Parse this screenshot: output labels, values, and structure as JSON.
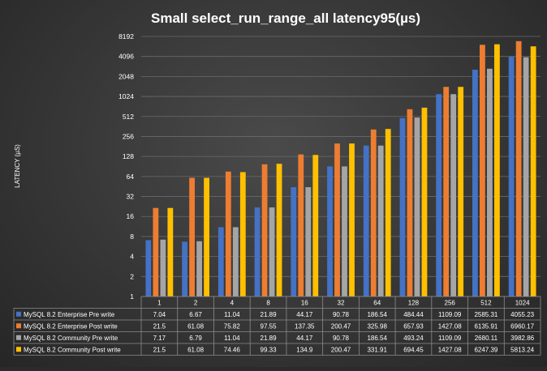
{
  "chart_data": {
    "type": "bar",
    "title": "Small select_run_range_all   latency95(µs)",
    "ylabel": "LATENCY (µS)",
    "yscale": "log2",
    "ylim": [
      1,
      8192
    ],
    "yticks": [
      "1",
      "2",
      "4",
      "8",
      "16",
      "32",
      "64",
      "128",
      "256",
      "512",
      "1024",
      "2048",
      "4096",
      "8192"
    ],
    "grid": true,
    "legend": "data-table",
    "categories": [
      "1",
      "2",
      "4",
      "8",
      "16",
      "32",
      "64",
      "128",
      "256",
      "512",
      "1024"
    ],
    "series": [
      {
        "name": "MySQL 8.2 Enterprise Pre write",
        "color": "#4472c4",
        "values": [
          7.04,
          6.67,
          11.04,
          21.89,
          44.17,
          90.78,
          186.54,
          484.44,
          1109.09,
          2585.31,
          4055.23
        ],
        "labels": [
          "7.04",
          "6.67",
          "11.04",
          "21.89",
          "44.17",
          "90.78",
          "186.54",
          "484.44",
          "1109.09",
          "2585.31",
          "4055.23"
        ]
      },
      {
        "name": "MySQL 8.2 Enterprise Post write",
        "color": "#ed7d31",
        "values": [
          21.5,
          61.08,
          75.82,
          97.55,
          137.35,
          200.47,
          325.98,
          657.93,
          1427.08,
          6135.91,
          6960.17
        ],
        "labels": [
          "21.5",
          "61.08",
          "75.82",
          "97.55",
          "137.35",
          "200.47",
          "325.98",
          "657.93",
          "1427.08",
          "6135.91",
          "6960.17"
        ]
      },
      {
        "name": "MySQL 8.2 Community Pre write",
        "color": "#a5a5a5",
        "values": [
          7.17,
          6.79,
          11.04,
          21.89,
          44.17,
          90.78,
          186.54,
          493.24,
          1109.09,
          2680.11,
          3982.86
        ],
        "labels": [
          "7.17",
          "6.79",
          "11.04",
          "21.89",
          "44.17",
          "90.78",
          "186.54",
          "493.24",
          "1109.09",
          "2680.11",
          "3982.86"
        ]
      },
      {
        "name": "MySQL 8.2 Community Post write",
        "color": "#ffc000",
        "values": [
          21.5,
          61.08,
          74.46,
          99.33,
          134.9,
          200.47,
          331.91,
          694.45,
          1427.08,
          6247.39,
          5813.24
        ],
        "labels": [
          "21.5",
          "61.08",
          "74.46",
          "99.33",
          "134.9",
          "200.47",
          "331.91",
          "694.45",
          "1427.08",
          "6247.39",
          "5813.24"
        ]
      }
    ]
  }
}
